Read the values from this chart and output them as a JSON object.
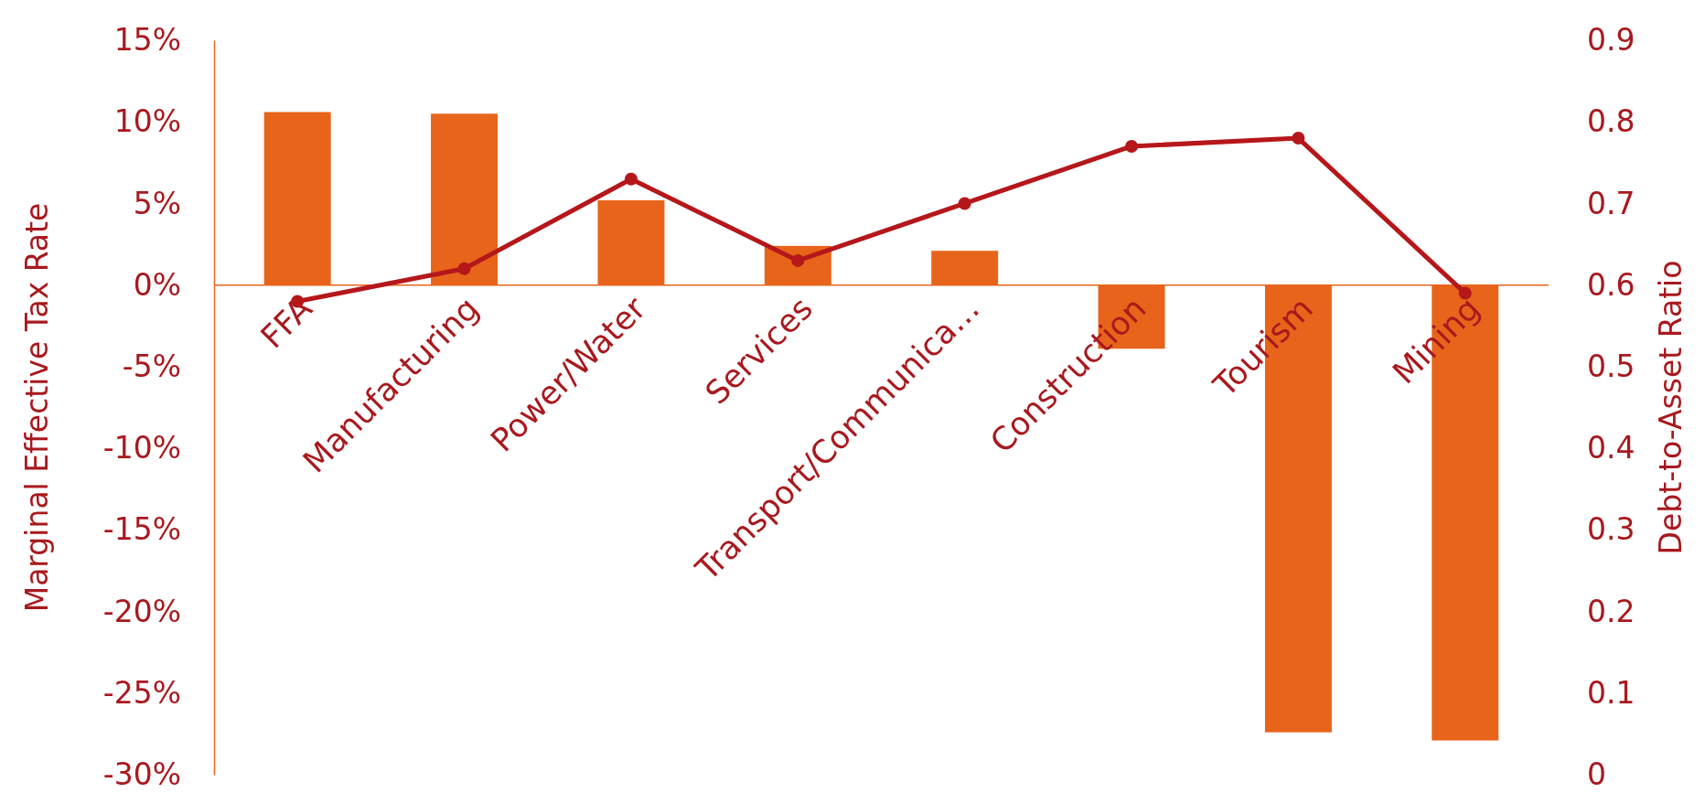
{
  "chart_data": {
    "type": "bar",
    "categories": [
      "FFA",
      "Manufacturing",
      "Power/Water",
      "Services",
      "Transport/Communica…",
      "Construction",
      "Tourism",
      "Mining"
    ],
    "ylabel": "Marginal Effective Tax Rate",
    "y2label": "Debt-to-Asset Ratio",
    "series": [
      {
        "color": "#e8641a",
        "values": [
          10.6,
          10.5,
          5.2,
          2.4,
          2.1,
          -3.9,
          -27.4,
          -27.9
        ]
      },
      {
        "type": "line",
        "axis": "y2",
        "color": "#b5171b",
        "marker": "circle",
        "values": [
          0.58,
          0.62,
          0.73,
          0.63,
          0.7,
          0.77,
          0.78,
          0.59
        ]
      }
    ],
    "ylim": [
      -30,
      15
    ],
    "yticks": [
      {
        "value": -30,
        "label": "-30%"
      },
      {
        "value": -25,
        "label": "-25%"
      },
      {
        "value": -20,
        "label": "-20%"
      },
      {
        "value": -15,
        "label": "-15%"
      },
      {
        "value": -10,
        "label": "-10%"
      },
      {
        "value": -5,
        "label": "-5%"
      },
      {
        "value": 0,
        "label": "0%"
      },
      {
        "value": 5,
        "label": "5%"
      },
      {
        "value": 10,
        "label": "10%"
      },
      {
        "value": 15,
        "label": "15%"
      }
    ],
    "y2lim": [
      0,
      0.9
    ],
    "y2ticks": [
      {
        "value": 0,
        "label": "0"
      },
      0.1,
      0.2,
      0.3,
      0.4,
      0.5,
      0.6,
      0.7,
      0.8,
      0.9
    ],
    "grid": false
  }
}
